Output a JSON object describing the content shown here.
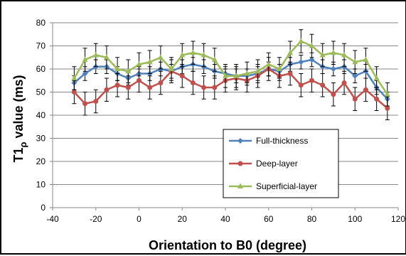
{
  "chart_data": {
    "type": "line",
    "xlabel": "Orientation to B0 (degree)",
    "ylabel_main": "T1",
    "ylabel_sub": "ρ",
    "ylabel_rest": " value (ms)",
    "xlim": [
      -40,
      120
    ],
    "ylim": [
      0,
      80
    ],
    "x_ticks": [
      "-40",
      "-20",
      "0",
      "20",
      "40",
      "60",
      "80",
      "100",
      "120"
    ],
    "y_ticks": [
      "0",
      "10",
      "20",
      "30",
      "40",
      "50",
      "60",
      "70",
      "80"
    ],
    "grid": true,
    "legend_position": "lower-right",
    "x": [
      -30,
      -25,
      -20,
      -15,
      -10,
      -5,
      0,
      5,
      10,
      15,
      20,
      25,
      30,
      35,
      40,
      45,
      50,
      55,
      60,
      65,
      70,
      75,
      80,
      85,
      90,
      95,
      100,
      105,
      110,
      115
    ],
    "series": [
      {
        "name": "Full-thickness",
        "color": "#4f81bd",
        "marker": "diamond",
        "values": [
          54,
          58,
          61,
          61,
          58,
          56,
          58,
          58,
          60,
          59,
          61,
          62,
          61,
          59,
          58,
          57,
          57,
          58,
          60,
          59,
          62,
          63,
          64,
          61,
          60,
          61,
          57,
          59,
          52,
          47
        ],
        "errors": [
          3,
          3,
          3,
          3,
          3,
          3,
          3,
          3,
          3,
          3,
          3,
          3,
          3,
          3,
          3,
          3,
          3,
          3,
          3,
          3,
          3,
          3,
          3,
          3,
          3,
          3,
          3,
          3,
          3,
          3
        ]
      },
      {
        "name": "Deep-layer",
        "color": "#c0504d",
        "marker": "circle",
        "values": [
          50,
          45,
          46,
          51,
          53,
          52,
          55,
          52,
          54,
          59,
          57,
          54,
          52,
          52,
          55,
          56,
          55,
          57,
          60,
          57,
          58,
          53,
          55,
          53,
          49,
          54,
          47,
          51,
          47,
          43
        ],
        "errors": [
          5,
          5,
          5,
          5,
          5,
          5,
          5,
          5,
          5,
          5,
          5,
          5,
          5,
          5,
          5,
          5,
          5,
          5,
          5,
          5,
          5,
          5,
          5,
          5,
          5,
          5,
          5,
          5,
          5,
          5
        ]
      },
      {
        "name": "Superficial-layer",
        "color": "#9bbb59",
        "marker": "triangle",
        "values": [
          56,
          64,
          66,
          65,
          60,
          59,
          62,
          63,
          65,
          60,
          66,
          67,
          66,
          64,
          57,
          57,
          58,
          59,
          62,
          60,
          67,
          72,
          70,
          66,
          67,
          66,
          63,
          64,
          56,
          49
        ],
        "errors": [
          5,
          5,
          5,
          5,
          5,
          5,
          5,
          5,
          5,
          5,
          5,
          5,
          5,
          5,
          5,
          5,
          5,
          5,
          5,
          5,
          5,
          5,
          5,
          5,
          5,
          5,
          5,
          5,
          5,
          5
        ]
      }
    ]
  }
}
